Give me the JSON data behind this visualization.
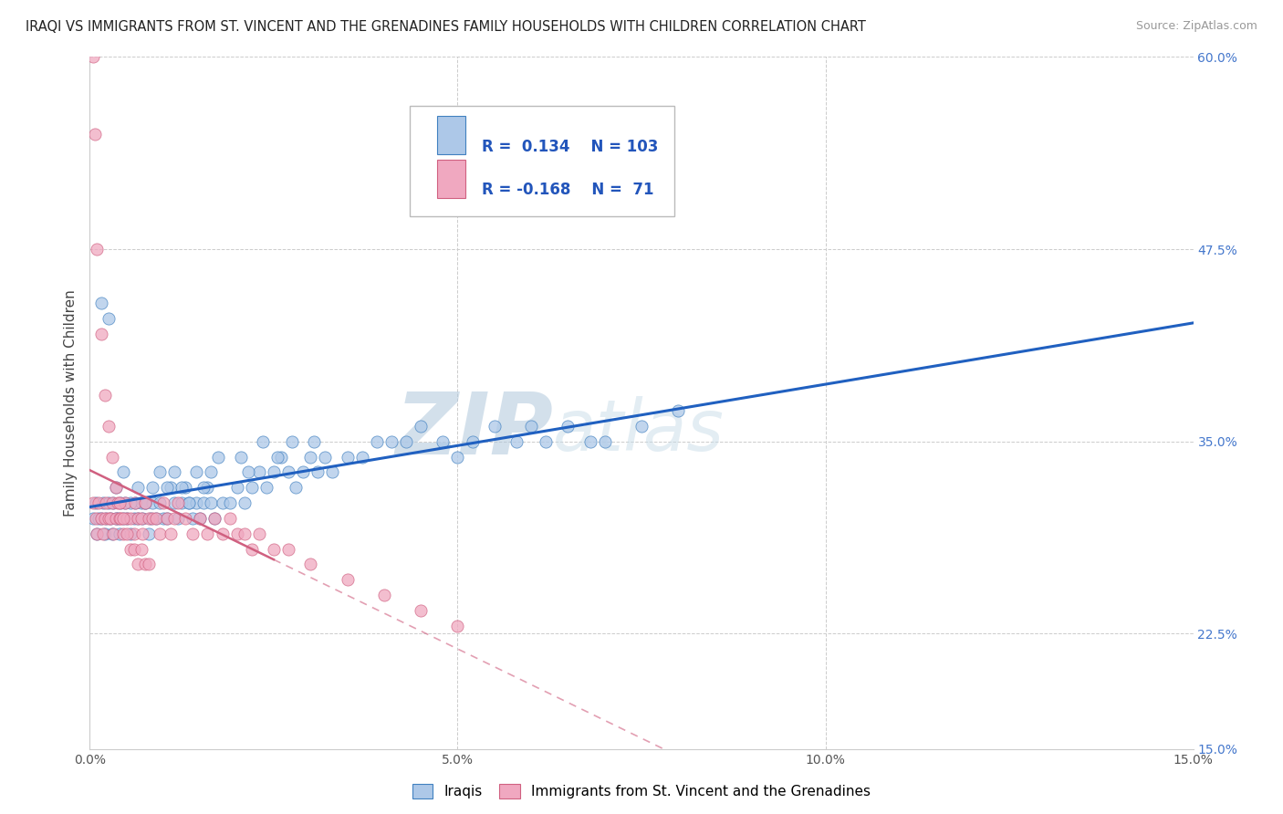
{
  "title": "IRAQI VS IMMIGRANTS FROM ST. VINCENT AND THE GRENADINES FAMILY HOUSEHOLDS WITH CHILDREN CORRELATION CHART",
  "source": "Source: ZipAtlas.com",
  "ylabel": "Family Households with Children",
  "xlim": [
    0.0,
    15.0
  ],
  "ylim": [
    15.0,
    60.0
  ],
  "xticks": [
    0.0,
    5.0,
    10.0,
    15.0
  ],
  "xtick_labels": [
    "0.0%",
    "5.0%",
    "10.0%",
    "15.0%"
  ],
  "yticks": [
    15.0,
    22.5,
    35.0,
    47.5,
    60.0
  ],
  "ytick_labels": [
    "15.0%",
    "22.5%",
    "35.0%",
    "47.5%",
    "60.0%"
  ],
  "blue_R": 0.134,
  "blue_N": 103,
  "pink_R": -0.168,
  "pink_N": 71,
  "blue_color": "#adc8e8",
  "pink_color": "#f0a8c0",
  "blue_edge_color": "#4080c0",
  "pink_edge_color": "#d06080",
  "blue_line_color": "#2060c0",
  "pink_line_color": "#d06080",
  "watermark": "ZIPatlas",
  "watermark_color": "#ccdded",
  "background_color": "#ffffff",
  "grid_color": "#cccccc",
  "title_fontsize": 10.5,
  "legend_color": "#2255bb"
}
